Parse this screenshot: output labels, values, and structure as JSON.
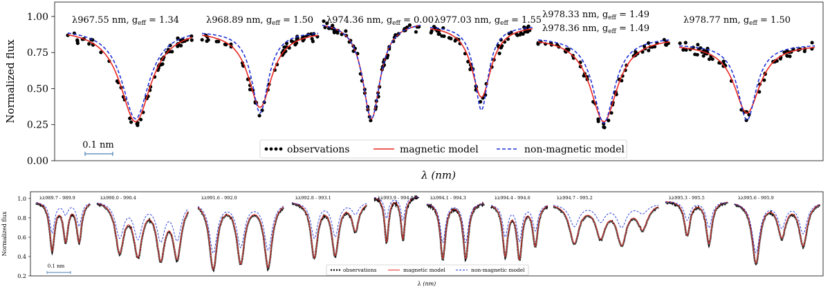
{
  "chart_data": [
    {
      "type": "line",
      "role": "main",
      "ylabel": "Normalized flux",
      "xlabel": "λ (nm)",
      "ylim": [
        0.0,
        1.1
      ],
      "yticks": [
        "0.00",
        "0.25",
        "0.50",
        "0.75",
        "1.00"
      ],
      "ytick_values": [
        0.0,
        0.25,
        0.5,
        0.75,
        1.0
      ],
      "scale_bar": "0.1 nm",
      "legend": [
        "observations",
        "magnetic model",
        "non-magnetic model"
      ],
      "colors": {
        "obs": "#000000",
        "magnetic": "#e8251f",
        "nonmagnetic": "#1f2fd6"
      },
      "series_names": [
        "observations",
        "magnetic model",
        "non-magnetic model"
      ],
      "panels": [
        {
          "label": "λ967.55 nm, g_eff = 1.34",
          "label_main": "λ967.55 nm, g",
          "label_tail": " = 1.34",
          "continuum": 0.92,
          "depth_mag": 0.27,
          "depth_nonmag": 0.29,
          "width_mag": 0.55,
          "width_nonmag": 0.48
        },
        {
          "label": "λ968.89 nm, g_eff = 1.50",
          "label_main": "λ968.89 nm, g",
          "label_tail": " = 1.50",
          "continuum": 0.9,
          "depth_mag": 0.37,
          "depth_nonmag": 0.33,
          "width_mag": 0.45,
          "width_nonmag": 0.32
        },
        {
          "label": "λ974.36 nm, g_eff = 0.00",
          "label_main": "λ974.36 nm, g",
          "label_tail": " = 0.00",
          "continuum": 0.97,
          "depth_mag": 0.29,
          "depth_nonmag": 0.29,
          "width_mag": 0.4,
          "width_nonmag": 0.4
        },
        {
          "label": "λ977.03 nm, g_eff = 1.55",
          "label_main": "λ977.03 nm, g",
          "label_tail": " = 1.55",
          "continuum": 0.94,
          "depth_mag": 0.44,
          "depth_nonmag": 0.35,
          "width_mag": 0.42,
          "width_nonmag": 0.3
        },
        {
          "label": "λ978.33 nm, g_eff = 1.49 / λ978.36 nm, g_eff = 1.49",
          "label_main": "λ978.33 nm, g",
          "label_tail": " = 1.49",
          "label_main_2": "λ978.36 nm, g",
          "label_tail_2": " = 1.49",
          "continuum": 0.86,
          "depth_mag": 0.27,
          "depth_nonmag": 0.26,
          "width_mag": 0.46,
          "width_nonmag": 0.36
        },
        {
          "label": "λ978.77 nm, g_eff = 1.50",
          "label_main": "λ978.77 nm, g",
          "label_tail": " = 1.50",
          "continuum": 0.81,
          "depth_mag": 0.33,
          "depth_nonmag": 0.28,
          "width_mag": 0.42,
          "width_nonmag": 0.3
        }
      ]
    },
    {
      "type": "line",
      "role": "bottom",
      "ylabel": "Normalized flux",
      "xlabel": "λ (nm)",
      "ylim": [
        0.2,
        1.07
      ],
      "yticks": [
        "0.2",
        "0.4",
        "0.6",
        "0.8",
        "1.0"
      ],
      "ytick_values": [
        0.2,
        0.4,
        0.6,
        0.8,
        1.0
      ],
      "scale_bar": "0.1 nm",
      "legend": [
        "observations",
        "magnetic model",
        "non-magnetic model"
      ],
      "panels": [
        {
          "label": "λλ989.7 - 989.9",
          "continuum": 0.97,
          "lines": [
            [
              0.3,
              0.47,
              0.65
            ],
            [
              0.55,
              0.58,
              0.85
            ],
            [
              0.8,
              0.56,
              0.72
            ]
          ]
        },
        {
          "label": "λλ990.0 - 990.4",
          "continuum": 0.98,
          "lines": [
            [
              0.25,
              0.47,
              0.62
            ],
            [
              0.45,
              0.45,
              0.62
            ],
            [
              0.7,
              0.42,
              0.6
            ],
            [
              0.88,
              0.42,
              0.6
            ]
          ]
        },
        {
          "label": "λλ991.6 - 992.0",
          "continuum": 0.97,
          "lines": [
            [
              0.18,
              0.28,
              0.45
            ],
            [
              0.5,
              0.35,
              0.52
            ],
            [
              0.82,
              0.3,
              0.48
            ]
          ]
        },
        {
          "label": "λλ992.8 - 993.1",
          "continuum": 0.97,
          "lines": [
            [
              0.3,
              0.4,
              0.6
            ],
            [
              0.58,
              0.43,
              0.62
            ],
            [
              0.85,
              0.68,
              0.85
            ]
          ]
        },
        {
          "label": "λλ993.9 - 994.0",
          "continuum": 1.02,
          "lines": [
            [
              0.28,
              0.55,
              0.8
            ],
            [
              0.65,
              0.58,
              0.78
            ]
          ]
        },
        {
          "label": "λλ994.1 - 994.3",
          "continuum": 0.96,
          "lines": [
            [
              0.28,
              0.38,
              0.55
            ],
            [
              0.68,
              0.38,
              0.55
            ]
          ]
        },
        {
          "label": "λλ994.4 - 994.6",
          "continuum": 0.95,
          "lines": [
            [
              0.25,
              0.42,
              0.62
            ],
            [
              0.5,
              0.4,
              0.58
            ],
            [
              0.78,
              0.52,
              0.68
            ]
          ]
        },
        {
          "label": "λλ994.7 - 995.2",
          "continuum": 0.95,
          "lines": [
            [
              0.2,
              0.55,
              0.72
            ],
            [
              0.45,
              0.62,
              0.78
            ],
            [
              0.65,
              0.55,
              0.72
            ],
            [
              0.85,
              0.7,
              0.86
            ]
          ]
        },
        {
          "label": "λλ995.3 - 995.5",
          "continuum": 0.97,
          "lines": [
            [
              0.35,
              0.62,
              0.78
            ],
            [
              0.7,
              0.53,
              0.7
            ]
          ]
        },
        {
          "label": "λλ995.6 - 995.9",
          "continuum": 0.97,
          "lines": [
            [
              0.25,
              0.34,
              0.45
            ],
            [
              0.55,
              0.62,
              0.72
            ],
            [
              0.8,
              0.52,
              0.65
            ]
          ]
        }
      ]
    }
  ]
}
